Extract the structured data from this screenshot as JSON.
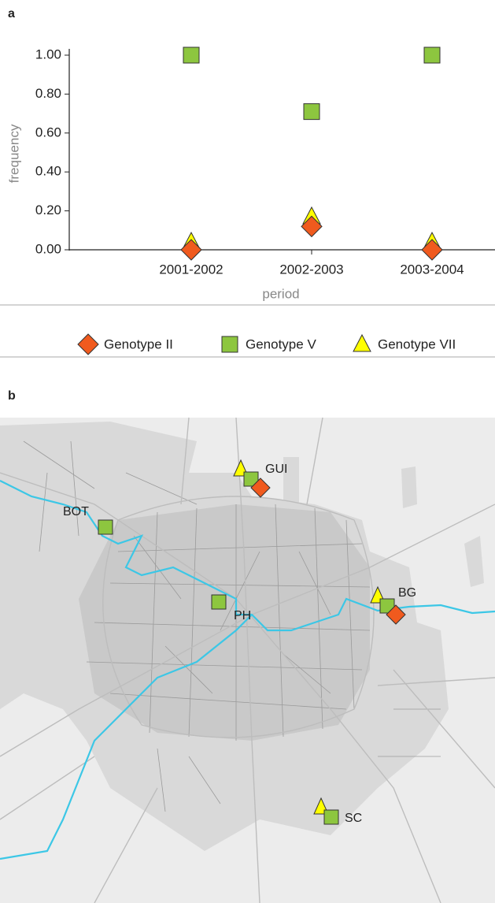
{
  "panel_a": "a",
  "panel_b": "b",
  "chart_data": {
    "type": "scatter",
    "x_label": "period",
    "y_label": "frequency",
    "categories": [
      "2001-2002",
      "2002-2003",
      "2003-2004"
    ],
    "series": [
      {
        "name": "Genotype II",
        "color": "#f05a1e",
        "marker": "diamond",
        "values": [
          0,
          0.12,
          0
        ]
      },
      {
        "name": "Genotype V",
        "color": "#8dc63f",
        "marker": "square",
        "values": [
          1.0,
          0.71,
          1.0
        ]
      },
      {
        "name": "Genotype VII",
        "color": "#ffff00",
        "marker": "triangle",
        "values": [
          0.04,
          0.17,
          0.04
        ]
      }
    ],
    "ylim": [
      0,
      1.0
    ],
    "yticks": [
      {
        "value": 0,
        "label": "0.00"
      },
      {
        "value": 0.2,
        "label": "0.20"
      },
      {
        "value": 0.4,
        "label": "0.40"
      },
      {
        "value": 0.6,
        "label": "0.60"
      },
      {
        "value": 0.8,
        "label": "0.80"
      },
      {
        "value": 1.0,
        "label": "1.00"
      }
    ],
    "legend": "bottom"
  },
  "sites": [
    "GUI",
    "BOT",
    "PH",
    "BG",
    "SC"
  ]
}
